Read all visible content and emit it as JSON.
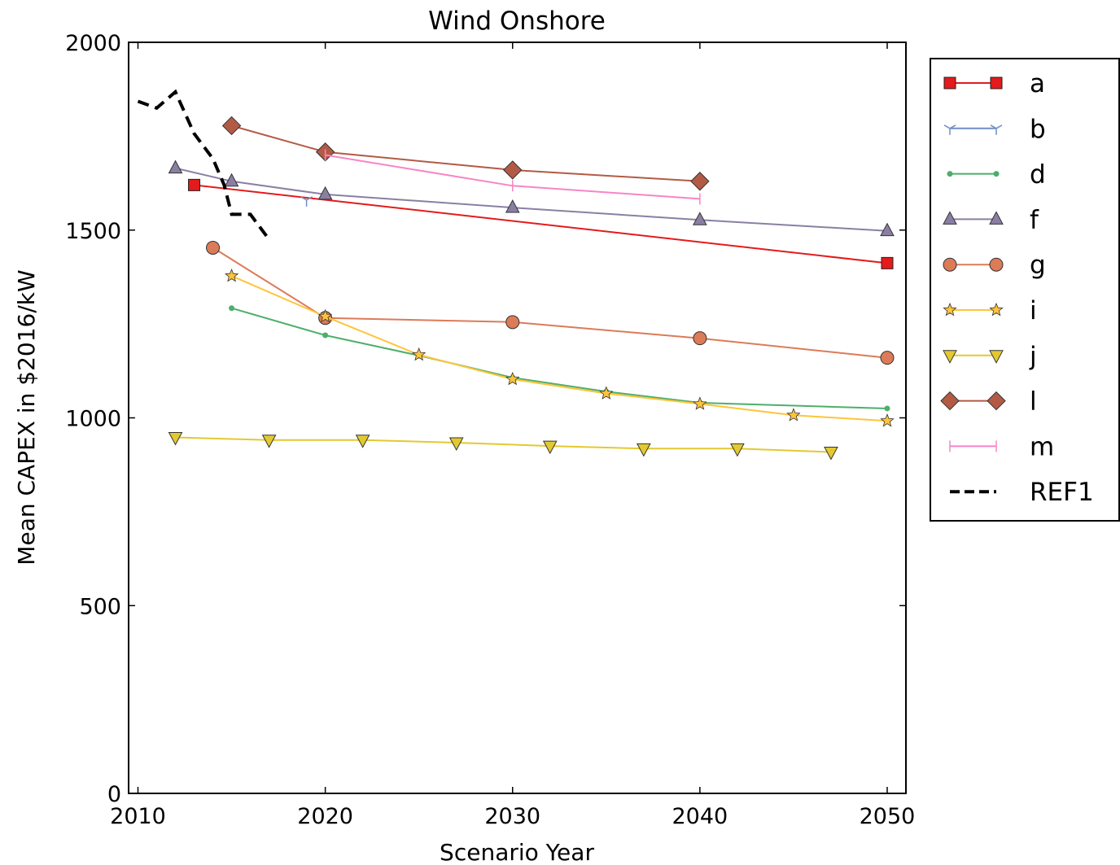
{
  "chart_data": {
    "type": "line",
    "title": "Wind Onshore",
    "xlabel": "Scenario Year",
    "ylabel": "Mean CAPEX in $2016/kW",
    "xlim": [
      2009.5,
      2051
    ],
    "ylim": [
      0,
      2000
    ],
    "xticks": [
      2010,
      2020,
      2030,
      2040,
      2050
    ],
    "yticks": [
      0,
      500,
      1000,
      1500,
      2000
    ],
    "grid": false,
    "legend_position": "outside-right-top",
    "series": [
      {
        "name": "a",
        "color": "#e41a1c",
        "marker": "square",
        "dash": "",
        "x": [
          2013,
          2050
        ],
        "y": [
          1620,
          1412
        ]
      },
      {
        "name": "b",
        "color": "#6f8fc7",
        "marker": "tri_down",
        "dash": "",
        "x": [
          2019
        ],
        "y": [
          1580
        ]
      },
      {
        "name": "d",
        "color": "#4daf6a",
        "marker": "dot",
        "dash": "",
        "x": [
          2015,
          2020,
          2025,
          2030,
          2035,
          2040,
          2050
        ],
        "y": [
          1292,
          1220,
          1166,
          1107,
          1070,
          1040,
          1025
        ]
      },
      {
        "name": "f",
        "color": "#8a7fa3",
        "marker": "triangle_up",
        "dash": "",
        "x": [
          2012,
          2015,
          2020,
          2030,
          2040,
          2050
        ],
        "y": [
          1665,
          1630,
          1595,
          1560,
          1527,
          1498
        ]
      },
      {
        "name": "g",
        "color": "#dc7b58",
        "marker": "circle",
        "dash": "",
        "x": [
          2014,
          2020,
          2030,
          2040,
          2050
        ],
        "y": [
          1453,
          1266,
          1255,
          1212,
          1160
        ]
      },
      {
        "name": "i",
        "color": "#ffc43a",
        "marker": "star",
        "dash": "",
        "x": [
          2015,
          2020,
          2025,
          2030,
          2035,
          2040,
          2045,
          2050
        ],
        "y": [
          1378,
          1270,
          1168,
          1103,
          1065,
          1037,
          1007,
          992
        ]
      },
      {
        "name": "j",
        "color": "#e3c931",
        "marker": "triangle_down",
        "dash": "",
        "x": [
          2012,
          2017,
          2022,
          2027,
          2032,
          2037,
          2042,
          2047
        ],
        "y": [
          948,
          941,
          941,
          934,
          925,
          918,
          918,
          909
        ]
      },
      {
        "name": "l",
        "color": "#b35a45",
        "marker": "diamond",
        "dash": "",
        "x": [
          2015,
          2020,
          2030,
          2040
        ],
        "y": [
          1778,
          1708,
          1660,
          1630
        ]
      },
      {
        "name": "m",
        "color": "#f785c5",
        "marker": "vline",
        "dash": "",
        "x": [
          2020,
          2030,
          2040
        ],
        "y": [
          1700,
          1618,
          1583
        ]
      },
      {
        "name": "REF1",
        "color": "#000000",
        "marker": "none",
        "dash": "14 8",
        "x": [
          2010,
          2011,
          2012,
          2013,
          2014,
          2014.6,
          2015,
          2016,
          2017
        ],
        "y": [
          1843,
          1825,
          1868,
          1757,
          1690,
          1620,
          1542,
          1542,
          1475
        ]
      }
    ]
  }
}
